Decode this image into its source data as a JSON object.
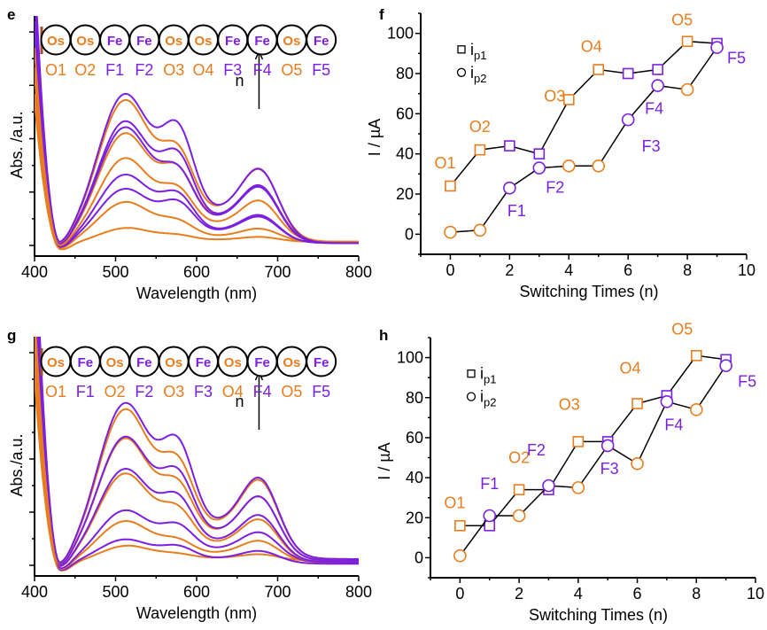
{
  "colors": {
    "os": "#e87d1e",
    "fe": "#7b1fe0",
    "axis": "#000000",
    "bar": "#a0522d"
  },
  "chart_data": [
    {
      "panel": "e",
      "type": "line",
      "xlabel": "Wavelength (nm)",
      "ylabel": "Abs. /a.u.",
      "xlim": [
        400,
        800
      ],
      "xticks": [
        "400",
        "500",
        "600",
        "700",
        "800"
      ],
      "sequence": [
        {
          "metal": "Os",
          "label": "O1"
        },
        {
          "metal": "Os",
          "label": "O2"
        },
        {
          "metal": "Fe",
          "label": "F1"
        },
        {
          "metal": "Fe",
          "label": "F2"
        },
        {
          "metal": "Os",
          "label": "O3"
        },
        {
          "metal": "Os",
          "label": "O4"
        },
        {
          "metal": "Fe",
          "label": "F3"
        },
        {
          "metal": "Fe",
          "label": "F4"
        },
        {
          "metal": "Os",
          "label": "O5"
        },
        {
          "metal": "Fe",
          "label": "F5"
        }
      ],
      "arrow_label": "n",
      "series": [
        {
          "name": "O1",
          "metal": "Os",
          "peak1": 0.12,
          "peak2": 0.07,
          "shoulder": 0.03,
          "tail": 0.03
        },
        {
          "name": "O2",
          "metal": "Os",
          "peak1": 0.34,
          "peak2": 0.22,
          "shoulder": 0.08,
          "tail": 0.03
        },
        {
          "name": "F1",
          "metal": "Fe",
          "peak1": 0.46,
          "peak2": 0.46,
          "shoulder": 0.16,
          "tail": 0.02
        },
        {
          "name": "F2",
          "metal": "Fe",
          "peak1": 0.58,
          "peak2": 0.55,
          "shoulder": 0.17,
          "tail": 0.02
        },
        {
          "name": "O3",
          "metal": "Os",
          "peak1": 0.71,
          "peak2": 0.56,
          "shoulder": 0.25,
          "tail": 0.03
        },
        {
          "name": "O4",
          "metal": "Os",
          "peak1": 0.92,
          "peak2": 0.78,
          "shoulder": 0.34,
          "tail": 0.03
        },
        {
          "name": "F3",
          "metal": "Fe",
          "peak1": 0.98,
          "peak2": 0.78,
          "shoulder": 0.34,
          "tail": 0.02
        },
        {
          "name": "F4",
          "metal": "Fe",
          "peak1": 1.03,
          "peak2": 0.98,
          "shoulder": 0.35,
          "tail": 0.02
        },
        {
          "name": "O5",
          "metal": "Os",
          "peak1": 1.2,
          "peak2": 0.98,
          "shoulder": 0.44,
          "tail": 0.03
        },
        {
          "name": "F5",
          "metal": "Fe",
          "peak1": 1.26,
          "peak2": 1.31,
          "shoulder": 0.45,
          "tail": 0.02
        }
      ]
    },
    {
      "panel": "f",
      "type": "line",
      "xlabel": "Switching Times (n)",
      "ylabel": "I / µA",
      "xlim": [
        -1,
        10
      ],
      "ylim": [
        -10,
        110
      ],
      "xticks": [
        "0",
        "2",
        "4",
        "6",
        "8",
        "10"
      ],
      "yticks": [
        "0",
        "20",
        "40",
        "60",
        "80",
        "100"
      ],
      "legend": [
        {
          "marker": "square",
          "label": "i",
          "sub": "p1"
        },
        {
          "marker": "circle",
          "label": "i",
          "sub": "p2"
        }
      ],
      "legend_position": "top-left",
      "series": [
        {
          "name": "ip1",
          "marker": "square",
          "x": [
            0,
            1,
            2,
            3,
            4,
            5,
            6,
            7,
            8,
            9
          ],
          "y": [
            24,
            42,
            44,
            40,
            67,
            82,
            80,
            82,
            96,
            95
          ],
          "metals": [
            "Os",
            "Os",
            "Fe",
            "Fe",
            "Os",
            "Os",
            "Fe",
            "Fe",
            "Os",
            "Fe"
          ]
        },
        {
          "name": "ip2",
          "marker": "circle",
          "x": [
            0,
            1,
            2,
            3,
            4,
            5,
            6,
            7,
            8,
            9
          ],
          "y": [
            1,
            2,
            23,
            33,
            34,
            34,
            57,
            74,
            72,
            93
          ],
          "metals": [
            "Os",
            "Os",
            "Fe",
            "Fe",
            "Os",
            "Os",
            "Fe",
            "Fe",
            "Os",
            "Fe"
          ]
        }
      ],
      "annotations": [
        {
          "text": "O1",
          "metal": "Os",
          "x": 0,
          "y": 24
        },
        {
          "text": "O2",
          "metal": "Os",
          "x": 1,
          "y": 42
        },
        {
          "text": "F1",
          "metal": "Fe",
          "x": 2,
          "y": 23
        },
        {
          "text": "F2",
          "metal": "Fe",
          "x": 3,
          "y": 33
        },
        {
          "text": "O3",
          "metal": "Os",
          "x": 4,
          "y": 67
        },
        {
          "text": "O4",
          "metal": "Os",
          "x": 5,
          "y": 82
        },
        {
          "text": "F3",
          "metal": "Fe",
          "x": 6,
          "y": 57
        },
        {
          "text": "F4",
          "metal": "Fe",
          "x": 7,
          "y": 74
        },
        {
          "text": "O5",
          "metal": "Os",
          "x": 8,
          "y": 96
        },
        {
          "text": "F5",
          "metal": "Fe",
          "x": 9,
          "y": 93
        }
      ]
    },
    {
      "panel": "g",
      "type": "line",
      "xlabel": "Wavelength (nm)",
      "ylabel": "Abs./a.u.",
      "xlim": [
        400,
        800
      ],
      "xticks": [
        "400",
        "500",
        "600",
        "700",
        "800"
      ],
      "sequence": [
        {
          "metal": "Os",
          "label": "O1"
        },
        {
          "metal": "Fe",
          "label": "F1"
        },
        {
          "metal": "Os",
          "label": "O2"
        },
        {
          "metal": "Fe",
          "label": "F2"
        },
        {
          "metal": "Os",
          "label": "O3"
        },
        {
          "metal": "Fe",
          "label": "F3"
        },
        {
          "metal": "Os",
          "label": "O4"
        },
        {
          "metal": "Fe",
          "label": "F4"
        },
        {
          "metal": "Os",
          "label": "O5"
        },
        {
          "metal": "Fe",
          "label": "F5"
        }
      ],
      "arrow_label": "n",
      "series": [
        {
          "name": "O1",
          "metal": "Os",
          "peak1": 0.1,
          "peak2": 0.05,
          "shoulder": 0.03,
          "tail": 0.03
        },
        {
          "name": "F1",
          "metal": "Fe",
          "peak1": 0.16,
          "peak2": 0.15,
          "shoulder": 0.06,
          "tail": 0.01
        },
        {
          "name": "O2",
          "metal": "Os",
          "peak1": 0.27,
          "peak2": 0.17,
          "shoulder": 0.1,
          "tail": 0.02
        },
        {
          "name": "F2",
          "metal": "Fe",
          "peak1": 0.34,
          "peak2": 0.31,
          "shoulder": 0.14,
          "tail": 0.02
        },
        {
          "name": "O3",
          "metal": "Os",
          "peak1": 0.58,
          "peak2": 0.43,
          "shoulder": 0.2,
          "tail": 0.02
        },
        {
          "name": "F3",
          "metal": "Fe",
          "peak1": 0.61,
          "peak2": 0.55,
          "shoulder": 0.22,
          "tail": 0.02
        },
        {
          "name": "O4",
          "metal": "Os",
          "peak1": 0.8,
          "peak2": 0.62,
          "shoulder": 0.3,
          "tail": 0.03
        },
        {
          "name": "F4",
          "metal": "Fe",
          "peak1": 0.81,
          "peak2": 0.74,
          "shoulder": 0.3,
          "tail": 0.03
        },
        {
          "name": "O5",
          "metal": "Os",
          "peak1": 0.98,
          "peak2": 0.8,
          "shoulder": 0.37,
          "tail": 0.04
        },
        {
          "name": "F5",
          "metal": "Fe",
          "peak1": 1.02,
          "peak2": 1.0,
          "shoulder": 0.38,
          "tail": 0.04
        }
      ]
    },
    {
      "panel": "h",
      "type": "line",
      "xlabel": "Switching Times (n)",
      "ylabel": "I / µA",
      "xlim": [
        -1,
        10
      ],
      "ylim": [
        -10,
        110
      ],
      "xticks": [
        "0",
        "2",
        "4",
        "6",
        "8",
        "10"
      ],
      "yticks": [
        "0",
        "20",
        "40",
        "60",
        "80",
        "100"
      ],
      "legend": [
        {
          "marker": "square",
          "label": "i",
          "sub": "p1"
        },
        {
          "marker": "circle",
          "label": "i",
          "sub": "p2"
        }
      ],
      "legend_position": "top-left",
      "series": [
        {
          "name": "ip1",
          "marker": "square",
          "x": [
            0,
            1,
            2,
            3,
            4,
            5,
            6,
            7,
            8,
            9
          ],
          "y": [
            16,
            16,
            34,
            34,
            58,
            58,
            77,
            81,
            101,
            99
          ],
          "metals": [
            "Os",
            "Fe",
            "Os",
            "Fe",
            "Os",
            "Fe",
            "Os",
            "Fe",
            "Os",
            "Fe"
          ]
        },
        {
          "name": "ip2",
          "marker": "circle",
          "x": [
            0,
            1,
            2,
            3,
            4,
            5,
            6,
            7,
            8,
            9
          ],
          "y": [
            1,
            21,
            21,
            36,
            35,
            56,
            47,
            78,
            74,
            96
          ],
          "metals": [
            "Os",
            "Fe",
            "Os",
            "Fe",
            "Os",
            "Fe",
            "Os",
            "Fe",
            "Os",
            "Fe"
          ]
        }
      ],
      "annotations": [
        {
          "text": "O1",
          "metal": "Os",
          "x": 0,
          "y": 16
        },
        {
          "text": "F1",
          "metal": "Fe",
          "x": 1,
          "y": 21
        },
        {
          "text": "O2",
          "metal": "Os",
          "x": 2,
          "y": 34
        },
        {
          "text": "F2",
          "metal": "Fe",
          "x": 3,
          "y": 36
        },
        {
          "text": "O3",
          "metal": "Os",
          "x": 4,
          "y": 58
        },
        {
          "text": "F3",
          "metal": "Fe",
          "x": 5,
          "y": 56
        },
        {
          "text": "O4",
          "metal": "Os",
          "x": 6,
          "y": 77
        },
        {
          "text": "F4",
          "metal": "Fe",
          "x": 7,
          "y": 78
        },
        {
          "text": "O5",
          "metal": "Os",
          "x": 8,
          "y": 101
        },
        {
          "text": "F5",
          "metal": "Fe",
          "x": 9,
          "y": 96
        }
      ]
    }
  ],
  "panel_letters": [
    "e",
    "f",
    "g",
    "h"
  ]
}
